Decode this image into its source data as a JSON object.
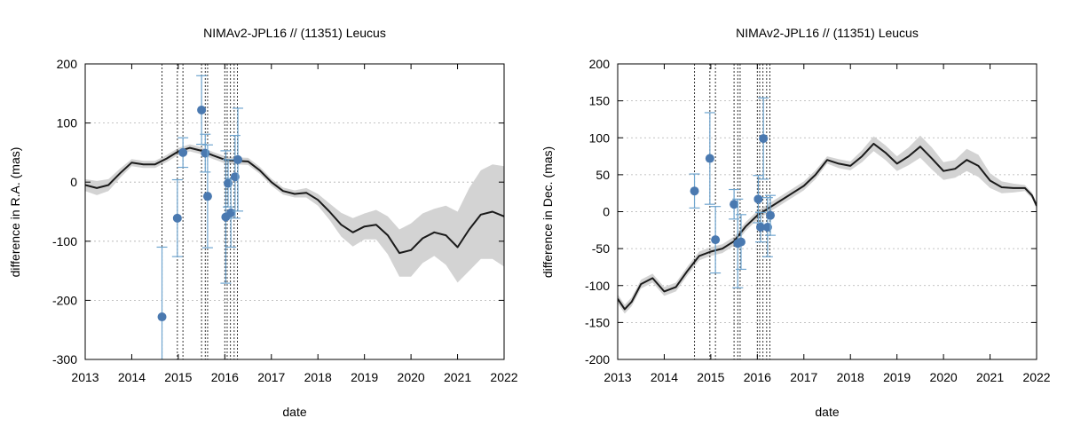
{
  "chart_data": [
    {
      "type": "line",
      "title": "NIMAv2-JPL16 // (11351) Leucus",
      "xlabel": "date",
      "ylabel": "difference in R.A. (mas)",
      "xlim": [
        2013,
        2022
      ],
      "ylim": [
        -300,
        200
      ],
      "x_ticks": [
        2013,
        2014,
        2015,
        2016,
        2017,
        2018,
        2019,
        2020,
        2021,
        2022
      ],
      "y_ticks": [
        -300,
        -200,
        -100,
        0,
        100,
        200
      ],
      "grid": "horizontal dotted",
      "legend": "none",
      "colors": {
        "model_line": "#1a1a1a",
        "uncertainty_band": "#d3d3d3",
        "observations": "#4a79b0",
        "error_bars": "#6fa5cf",
        "date_markers": "#333333"
      },
      "model_curve": {
        "x": [
          2013.0,
          2013.25,
          2013.5,
          2013.75,
          2014.0,
          2014.25,
          2014.5,
          2014.75,
          2015.0,
          2015.25,
          2015.5,
          2015.75,
          2016.0,
          2016.25,
          2016.5,
          2016.75,
          2017.0,
          2017.25,
          2017.5,
          2017.75,
          2018.0,
          2018.25,
          2018.5,
          2018.75,
          2019.0,
          2019.25,
          2019.5,
          2019.75,
          2020.0,
          2020.25,
          2020.5,
          2020.75,
          2021.0,
          2021.25,
          2021.5,
          2021.75,
          2022.0
        ],
        "y": [
          -5,
          -10,
          -5,
          15,
          33,
          30,
          30,
          40,
          52,
          58,
          53,
          45,
          38,
          36,
          35,
          20,
          0,
          -15,
          -20,
          -18,
          -30,
          -50,
          -72,
          -85,
          -75,
          -72,
          -90,
          -120,
          -115,
          -95,
          -85,
          -90,
          -110,
          -80,
          -55,
          -50,
          -58
        ],
        "band_halfwidth": [
          10,
          12,
          10,
          8,
          6,
          6,
          6,
          6,
          6,
          6,
          6,
          6,
          6,
          6,
          6,
          6,
          6,
          6,
          6,
          8,
          10,
          14,
          20,
          24,
          22,
          25,
          32,
          40,
          45,
          42,
          40,
          50,
          60,
          70,
          75,
          80,
          85
        ]
      },
      "observations": [
        {
          "x": 2014.65,
          "y": -228,
          "err": 118
        },
        {
          "x": 2014.98,
          "y": -61,
          "err": 65
        },
        {
          "x": 2015.1,
          "y": 50,
          "err": 25
        },
        {
          "x": 2015.5,
          "y": 122,
          "err": 58
        },
        {
          "x": 2015.58,
          "y": 49,
          "err": 32
        },
        {
          "x": 2015.63,
          "y": -24,
          "err": 87
        },
        {
          "x": 2016.02,
          "y": -59,
          "err": 112
        },
        {
          "x": 2016.07,
          "y": -2,
          "err": 40
        },
        {
          "x": 2016.13,
          "y": -52,
          "err": 58
        },
        {
          "x": 2016.22,
          "y": 9,
          "err": 70
        },
        {
          "x": 2016.28,
          "y": 38,
          "err": 87
        }
      ],
      "vertical_markers": [
        2014.65,
        2014.98,
        2015.1,
        2015.5,
        2015.58,
        2015.63,
        2016.0,
        2016.05,
        2016.12,
        2016.2,
        2016.27
      ]
    },
    {
      "type": "line",
      "title": "NIMAv2-JPL16 // (11351) Leucus",
      "xlabel": "date",
      "ylabel": "difference in Dec. (mas)",
      "xlim": [
        2013,
        2022
      ],
      "ylim": [
        -200,
        200
      ],
      "x_ticks": [
        2013,
        2014,
        2015,
        2016,
        2017,
        2018,
        2019,
        2020,
        2021,
        2022
      ],
      "y_ticks": [
        -200,
        -150,
        -100,
        -50,
        0,
        50,
        100,
        150,
        200
      ],
      "grid": "horizontal dotted",
      "legend": "none",
      "colors": {
        "model_line": "#1a1a1a",
        "uncertainty_band": "#d3d3d3",
        "observations": "#4a79b0",
        "error_bars": "#6fa5cf",
        "date_markers": "#333333"
      },
      "model_curve": {
        "x": [
          2013.0,
          2013.15,
          2013.3,
          2013.5,
          2013.75,
          2014.0,
          2014.25,
          2014.5,
          2014.75,
          2015.0,
          2015.25,
          2015.5,
          2015.75,
          2016.0,
          2016.25,
          2016.5,
          2016.75,
          2017.0,
          2017.25,
          2017.5,
          2017.75,
          2018.0,
          2018.25,
          2018.5,
          2018.75,
          2019.0,
          2019.25,
          2019.5,
          2019.75,
          2020.0,
          2020.25,
          2020.5,
          2020.75,
          2021.0,
          2021.25,
          2021.5,
          2021.75,
          2021.9,
          2022.0
        ],
        "y": [
          -118,
          -132,
          -122,
          -98,
          -90,
          -108,
          -102,
          -80,
          -60,
          -54,
          -50,
          -40,
          -20,
          -5,
          5,
          15,
          25,
          35,
          50,
          70,
          65,
          62,
          75,
          92,
          80,
          65,
          75,
          88,
          72,
          55,
          58,
          70,
          62,
          42,
          33,
          32,
          32,
          22,
          8
        ],
        "band_halfwidth": [
          6,
          6,
          6,
          6,
          6,
          6,
          6,
          6,
          6,
          6,
          6,
          6,
          6,
          6,
          6,
          6,
          6,
          6,
          6,
          5,
          6,
          6,
          8,
          10,
          10,
          10,
          12,
          15,
          15,
          12,
          12,
          15,
          15,
          10,
          8,
          6,
          4,
          4,
          4
        ]
      },
      "observations": [
        {
          "x": 2014.65,
          "y": 28,
          "err": 23
        },
        {
          "x": 2014.98,
          "y": 72,
          "err": 62
        },
        {
          "x": 2015.1,
          "y": -38,
          "err": 45
        },
        {
          "x": 2015.5,
          "y": 10,
          "err": 20
        },
        {
          "x": 2015.58,
          "y": -43,
          "err": 60
        },
        {
          "x": 2015.65,
          "y": -41,
          "err": 37
        },
        {
          "x": 2016.02,
          "y": 17,
          "err": 32
        },
        {
          "x": 2016.07,
          "y": -21,
          "err": 20
        },
        {
          "x": 2016.13,
          "y": 99,
          "err": 55
        },
        {
          "x": 2016.22,
          "y": -21,
          "err": 40
        },
        {
          "x": 2016.28,
          "y": -5,
          "err": 27
        }
      ],
      "vertical_markers": [
        2014.65,
        2014.98,
        2015.1,
        2015.5,
        2015.58,
        2015.63,
        2016.0,
        2016.05,
        2016.12,
        2016.2,
        2016.27
      ]
    }
  ]
}
